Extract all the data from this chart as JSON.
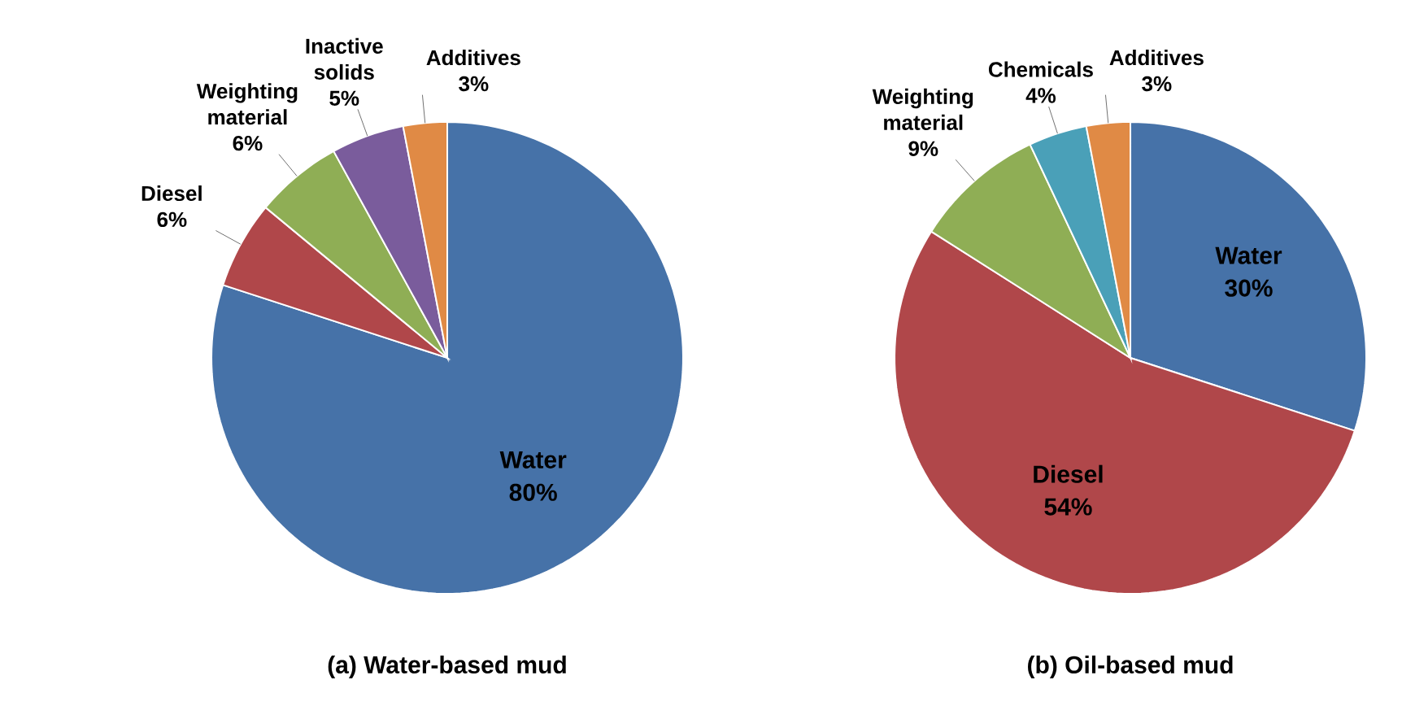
{
  "chart_data": [
    {
      "type": "pie",
      "title": "(a) Water-based mud",
      "categories": [
        "Water",
        "Diesel",
        "Weighting material",
        "Inactive solids",
        "Additives"
      ],
      "values": [
        80,
        6,
        6,
        5,
        3
      ],
      "value_labels": [
        "80%",
        "6%",
        "6%",
        "5%",
        "3%"
      ],
      "colors": [
        "#4672a8",
        "#b0474a",
        "#8fae55",
        "#7a5c9c",
        "#e08a45"
      ]
    },
    {
      "type": "pie",
      "title": "(b) Oil-based mud",
      "categories": [
        "Water",
        "Diesel",
        "Weighting material",
        "Chemicals",
        "Additives"
      ],
      "values": [
        30,
        54,
        9,
        4,
        3
      ],
      "value_labels": [
        "30%",
        "54%",
        "9%",
        "4%",
        "3%"
      ],
      "colors": [
        "#4672a8",
        "#b0474a",
        "#8fae55",
        "#4aa0b8",
        "#e08a45"
      ]
    }
  ]
}
